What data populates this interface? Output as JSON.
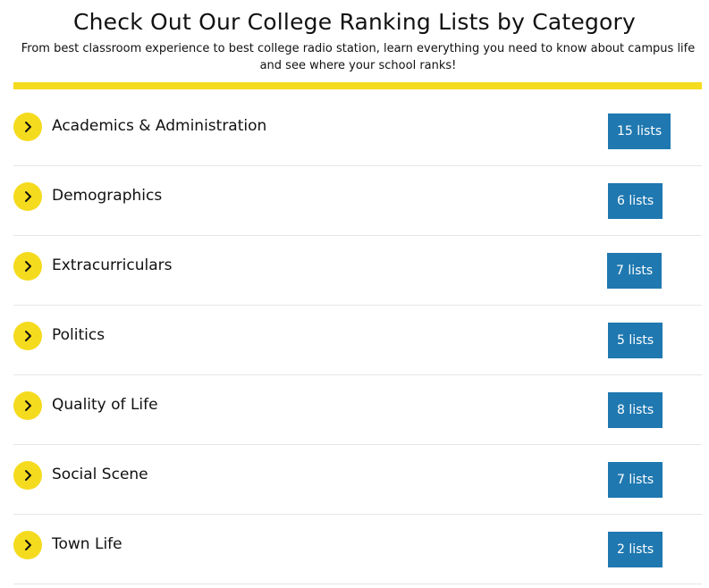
{
  "header": {
    "title": "Check Out Our College Ranking Lists by Category",
    "subtitle": "From best classroom experience to best college radio station, learn everything you need to know about campus life and see where your school ranks!"
  },
  "colors": {
    "accent_yellow": "#f5db1e",
    "badge_blue": "#1f78b0",
    "divider": "#e6e6e6",
    "text": "#111111"
  },
  "categories": [
    {
      "label": "Academics & Administration",
      "count_label": "15 lists",
      "icon": "chevron-right-icon"
    },
    {
      "label": "Demographics",
      "count_label": "6 lists",
      "icon": "chevron-right-icon"
    },
    {
      "label": "Extracurriculars",
      "count_label": "7 lists",
      "icon": "chevron-right-icon"
    },
    {
      "label": "Politics",
      "count_label": "5 lists",
      "icon": "chevron-right-icon"
    },
    {
      "label": "Quality of Life",
      "count_label": "8 lists",
      "icon": "chevron-right-icon"
    },
    {
      "label": "Social Scene",
      "count_label": "7 lists",
      "icon": "chevron-right-icon"
    },
    {
      "label": "Town Life",
      "count_label": "2 lists",
      "icon": "chevron-right-icon"
    }
  ]
}
